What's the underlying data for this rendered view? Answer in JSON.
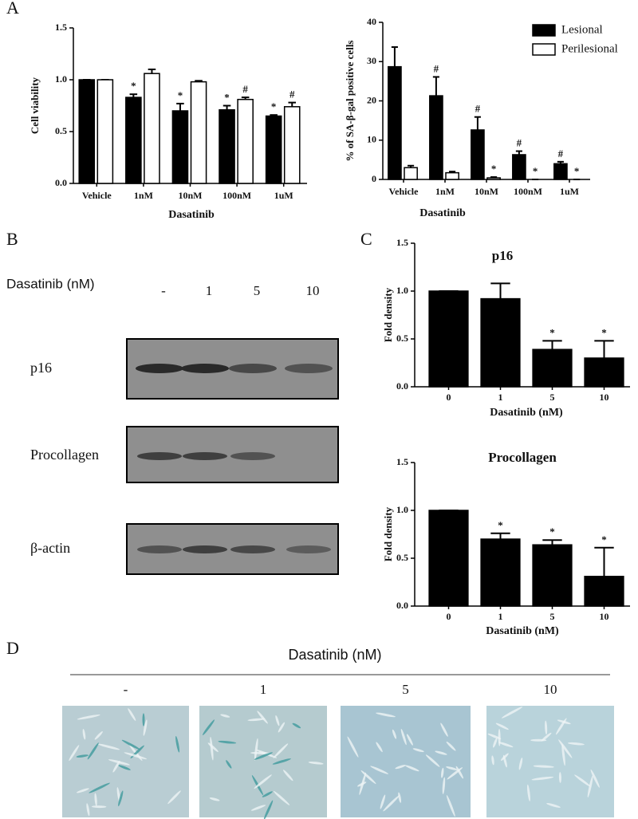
{
  "panels": {
    "a": "A",
    "b": "B",
    "c": "C",
    "d": "D"
  },
  "chart_data": [
    {
      "type": "bar",
      "y_label": "Cell viability",
      "x_label": "Dasatinib",
      "categories": [
        "Vehicle",
        "1nM",
        "10nM",
        "100nM",
        "1uM"
      ],
      "ylim": [
        0,
        1.5
      ],
      "yticks": [
        {
          "value": 0,
          "label": "0.0"
        },
        {
          "value": 0.5,
          "label": "0.5"
        },
        {
          "value": 1,
          "label": "1.0"
        },
        {
          "value": 1.5,
          "label": "1.5"
        }
      ],
      "series": [
        {
          "color": "#000000",
          "values": [
            1.0,
            0.83,
            0.7,
            0.71,
            0.65
          ],
          "errors": [
            0,
            0.03,
            0.07,
            0.04,
            0.01
          ],
          "markers": [
            null,
            "*",
            "*",
            "*",
            "*"
          ]
        },
        {
          "color": "#ffffff",
          "values": [
            1.0,
            1.06,
            0.98,
            0.81,
            0.74
          ],
          "errors": [
            0,
            0.04,
            0.01,
            0.02,
            0.04
          ],
          "markers": [
            null,
            null,
            null,
            "#",
            "#"
          ]
        }
      ]
    },
    {
      "type": "bar",
      "y_label": "% of SA-β-gal positive cells",
      "x_label": "Dasatinib",
      "categories": [
        "Vehicle",
        "1nM",
        "10nM",
        "100nM",
        "1uM"
      ],
      "ylim": [
        0,
        40
      ],
      "yticks": [
        0,
        10,
        20,
        30,
        40
      ],
      "legend": "upper right",
      "series": [
        {
          "name": "Lesional",
          "color": "#000000",
          "values": [
            28.7,
            21.3,
            12.6,
            6.3,
            4.0
          ],
          "errors": [
            5.0,
            4.8,
            3.3,
            0.9,
            0.5
          ],
          "markers": [
            null,
            "#",
            "#",
            "#",
            "#"
          ]
        },
        {
          "name": "Perilesional",
          "color": "#ffffff",
          "values": [
            3.0,
            1.7,
            0.4,
            0,
            0
          ],
          "errors": [
            0.5,
            0.3,
            0.2,
            0,
            0
          ],
          "markers": [
            null,
            null,
            "*",
            "*",
            "*"
          ]
        }
      ]
    },
    {
      "type": "bar",
      "title": "p16",
      "y_label": "Fold density",
      "x_label": "Dasatinib (nM)",
      "categories": [
        "0",
        "1",
        "5",
        "10"
      ],
      "ylim": [
        0,
        1.5
      ],
      "yticks": [
        {
          "value": 0,
          "label": "0.0"
        },
        {
          "value": 0.5,
          "label": "0.5"
        },
        {
          "value": 1,
          "label": "1.0"
        },
        {
          "value": 1.5,
          "label": "1.5"
        }
      ],
      "series": [
        {
          "color": "#000000",
          "values": [
            1.0,
            0.92,
            0.39,
            0.3
          ],
          "errors": [
            0,
            0.16,
            0.09,
            0.18
          ],
          "markers": [
            null,
            null,
            "*",
            "*"
          ]
        }
      ]
    },
    {
      "type": "bar",
      "title": "Procollagen",
      "y_label": "Fold density",
      "x_label": "Dasatinib (nM)",
      "categories": [
        "0",
        "1",
        "5",
        "10"
      ],
      "ylim": [
        0,
        1.5
      ],
      "yticks": [
        {
          "value": 0,
          "label": "0.0"
        },
        {
          "value": 0.5,
          "label": "0.5"
        },
        {
          "value": 1,
          "label": "1.0"
        },
        {
          "value": 1.5,
          "label": "1.5"
        }
      ],
      "series": [
        {
          "color": "#000000",
          "values": [
            1.0,
            0.7,
            0.64,
            0.31
          ],
          "errors": [
            0,
            0.06,
            0.05,
            0.3
          ],
          "markers": [
            null,
            "*",
            "*",
            "*"
          ]
        }
      ]
    }
  ],
  "blot": {
    "treatment": "Dasatinib (nM)",
    "lanes": [
      "-",
      "1",
      "5",
      "10"
    ],
    "rows": [
      "p16",
      "Procollagen",
      "β-actin"
    ]
  },
  "micrographs": {
    "treatment": "Dasatinib (nM)",
    "labels": [
      "-",
      "1",
      "5",
      "10"
    ]
  }
}
